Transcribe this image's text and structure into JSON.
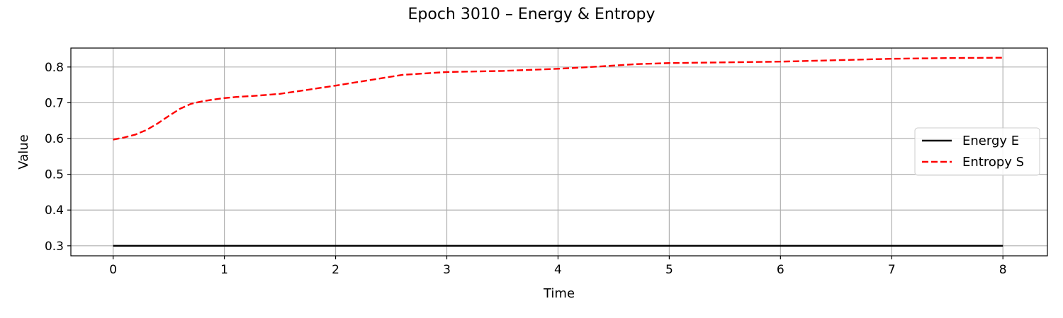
{
  "chart_data": {
    "type": "line",
    "title": "Epoch 3010 – Energy & Entropy",
    "xlabel": "Time",
    "ylabel": "Value",
    "xlim": [
      -0.38,
      8.4
    ],
    "ylim": [
      0.272,
      0.853
    ],
    "xticks": [
      0,
      1,
      2,
      3,
      4,
      5,
      6,
      7,
      8
    ],
    "yticks": [
      0.3,
      0.4,
      0.5,
      0.6,
      0.7,
      0.8
    ],
    "grid": true,
    "legend_position": "center-right",
    "series": [
      {
        "name": "Energy E",
        "color": "#000000",
        "style": "solid",
        "x": [
          0,
          8
        ],
        "y": [
          0.3,
          0.3
        ]
      },
      {
        "name": "Entropy S",
        "color": "#ff0000",
        "style": "dashed",
        "x": [
          0,
          0.1,
          0.2,
          0.3,
          0.4,
          0.5,
          0.6,
          0.7,
          0.8,
          0.9,
          1.0,
          1.1,
          1.2,
          1.3,
          1.5,
          1.7,
          2.0,
          2.3,
          2.6,
          3.0,
          3.5,
          4.0,
          4.4,
          4.7,
          5.0,
          5.5,
          6.0,
          6.5,
          7.0,
          7.5,
          8.0
        ],
        "y": [
          0.597,
          0.603,
          0.611,
          0.624,
          0.642,
          0.663,
          0.683,
          0.697,
          0.704,
          0.709,
          0.713,
          0.716,
          0.718,
          0.72,
          0.725,
          0.734,
          0.748,
          0.763,
          0.778,
          0.786,
          0.789,
          0.795,
          0.802,
          0.808,
          0.811,
          0.813,
          0.815,
          0.819,
          0.823,
          0.825,
          0.826
        ]
      }
    ]
  }
}
